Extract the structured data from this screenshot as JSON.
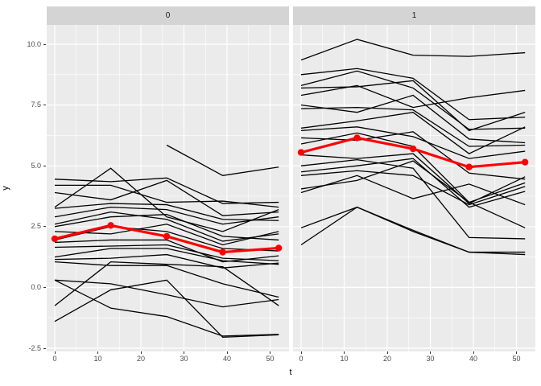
{
  "figure": {
    "x_axis_title": "t",
    "y_axis_title": "y",
    "x_ticks": [
      "0",
      "10",
      "20",
      "30",
      "40",
      "50"
    ],
    "x_tick_values": [
      0,
      10,
      20,
      30,
      40,
      50
    ],
    "x_minor_values": [
      5,
      15,
      25,
      35,
      45
    ],
    "y_ticks": [
      "10.0",
      "7.5",
      "5.0",
      "2.5",
      "0.0",
      "-2.5"
    ],
    "y_tick_values": [
      10,
      7.5,
      5,
      2.5,
      0,
      -2.5
    ],
    "y_minor_values": [
      8.75,
      6.25,
      3.75,
      1.25,
      -1.25
    ],
    "colors": {
      "panel_bg": "#ebebeb",
      "strip_bg": "#d4d4d4",
      "grid": "#ffffff",
      "series_line": "#000000",
      "mean_line": "#ff0000",
      "tick_text": "#4d4d4d",
      "tick_mark": "#333333"
    }
  },
  "chart_data": {
    "type": "line",
    "title": "",
    "xlabel": "t",
    "ylabel": "y",
    "x": [
      0,
      13,
      26,
      39,
      52
    ],
    "xlim_shown": [
      0,
      52
    ],
    "ylim_shown": [
      -2.7,
      10.9
    ],
    "grid": "on",
    "legend": "none",
    "facets": [
      {
        "label": "0",
        "series": [
          [
            null,
            null,
            5.85,
            4.6,
            4.95
          ],
          [
            4.45,
            4.35,
            4.5,
            3.45,
            3.5
          ],
          [
            4.2,
            4.2,
            3.5,
            3.55,
            3.3
          ],
          [
            3.3,
            4.9,
            2.9,
            2.3,
            3.2
          ],
          [
            3.9,
            3.6,
            4.4,
            2.95,
            3.1
          ],
          [
            3.25,
            3.45,
            3.4,
            2.8,
            2.75
          ],
          [
            2.9,
            3.3,
            3.2,
            2.6,
            2.9
          ],
          [
            2.6,
            3.1,
            2.8,
            1.9,
            2.2
          ],
          [
            2.5,
            2.9,
            3.0,
            2.1,
            1.95
          ],
          [
            2.3,
            2.2,
            2.6,
            1.75,
            2.3
          ],
          [
            1.95,
            2.5,
            2.3,
            1.6,
            1.5
          ],
          [
            1.85,
            1.95,
            1.95,
            1.05,
            1.3
          ],
          [
            1.65,
            1.7,
            1.75,
            1.2,
            1.1
          ],
          [
            1.25,
            1.6,
            1.6,
            1.1,
            0.95
          ],
          [
            1.15,
            1.2,
            1.35,
            0.8,
            1.0
          ],
          [
            1.05,
            0.9,
            0.9,
            0.15,
            -0.4
          ],
          [
            0.3,
            0.15,
            -0.3,
            -0.8,
            -0.5
          ],
          [
            0.3,
            -0.85,
            -1.2,
            -2.0,
            -1.93
          ],
          [
            -1.4,
            -0.1,
            0.3,
            -2.05,
            -1.95
          ],
          [
            -0.75,
            1.05,
            0.95,
            0.85,
            -0.75
          ]
        ],
        "mean_series": [
          2.0,
          2.55,
          2.1,
          1.45,
          1.62
        ]
      },
      {
        "label": "1",
        "series": [
          [
            9.35,
            10.2,
            9.55,
            9.5,
            9.65
          ],
          [
            8.75,
            9.0,
            8.6,
            6.9,
            7.0
          ],
          [
            8.3,
            8.9,
            8.2,
            6.5,
            6.55
          ],
          [
            8.2,
            8.25,
            8.5,
            6.45,
            7.2
          ],
          [
            7.9,
            8.3,
            7.4,
            7.8,
            8.1
          ],
          [
            7.5,
            7.2,
            7.9,
            6.1,
            5.95
          ],
          [
            7.35,
            7.4,
            7.3,
            5.8,
            5.85
          ],
          [
            6.55,
            6.85,
            7.2,
            5.5,
            6.6
          ],
          [
            6.45,
            6.6,
            6.2,
            5.3,
            5.6
          ],
          [
            6.15,
            6.05,
            6.4,
            4.7,
            4.45
          ],
          [
            5.9,
            6.35,
            5.8,
            3.5,
            4.3
          ],
          [
            5.45,
            5.3,
            5.5,
            3.45,
            4.55
          ],
          [
            5.0,
            5.25,
            4.9,
            2.05,
            2.0
          ],
          [
            4.75,
            5.0,
            5.3,
            3.3,
            3.95
          ],
          [
            4.6,
            4.8,
            4.6,
            3.4,
            4.15
          ],
          [
            4.05,
            4.4,
            5.2,
            3.5,
            2.45
          ],
          [
            3.9,
            4.6,
            3.65,
            4.25,
            3.4
          ],
          [
            2.45,
            3.3,
            2.3,
            1.45,
            1.45
          ],
          [
            1.75,
            3.3,
            2.35,
            1.45,
            1.35
          ]
        ],
        "mean_series": [
          5.55,
          6.15,
          5.7,
          4.95,
          5.15
        ]
      }
    ]
  }
}
